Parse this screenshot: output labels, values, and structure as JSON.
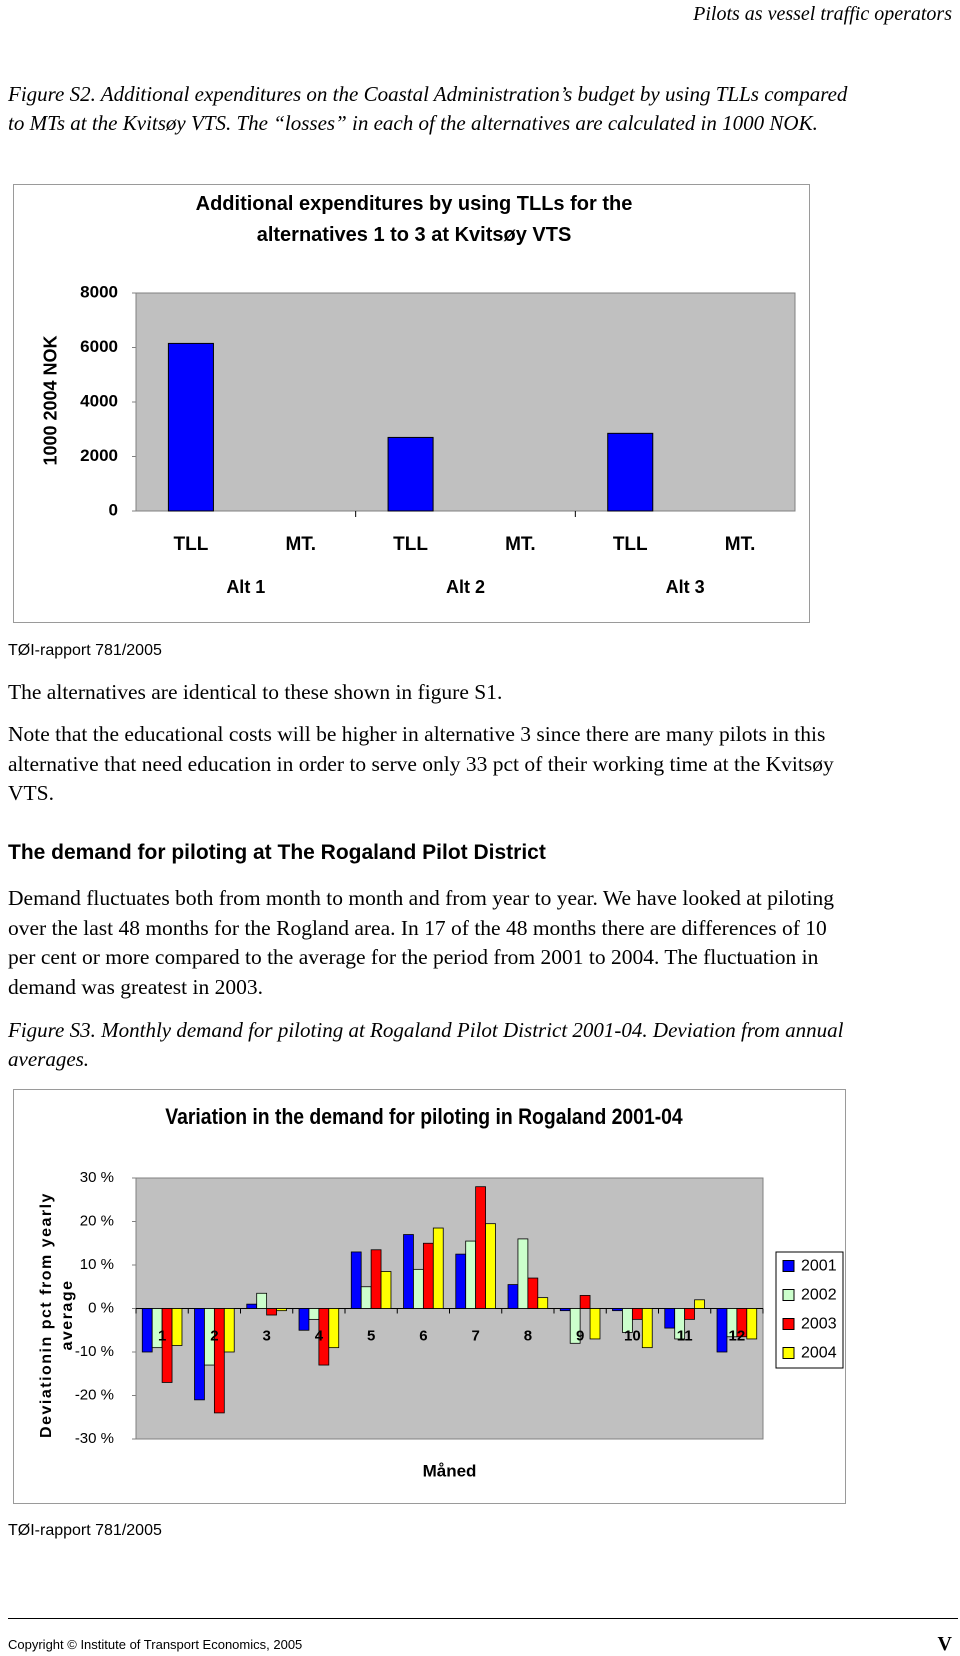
{
  "header": "Pilots as vessel traffic operators",
  "figure_s2_caption": "Figure S2. Additional expenditures on the Coastal Administration’s budget by using TLLs compared to MTs at the Kvitsøy VTS. The “losses” in each of the alternatives are calculated in 1000 NOK.",
  "chart_data": [
    {
      "type": "bar",
      "title": "Additional expenditures by using TLLs for the alternatives 1 to 3 at  Kvitsøy VTS",
      "y_label": "1000 2004 NOK",
      "categories": [
        "TLL",
        "MT.",
        "TLL",
        "MT.",
        "TLL",
        "MT."
      ],
      "group_labels": [
        "Alt 1",
        "Alt 2",
        "Alt 3"
      ],
      "values": [
        6150,
        0,
        2700,
        0,
        2850,
        0
      ],
      "color": "#0000ff",
      "ylim": [
        0,
        8000
      ],
      "yticks": [
        0,
        2000,
        4000,
        6000,
        8000
      ],
      "grid": false
    },
    {
      "type": "grouped-bar",
      "title": "Variation in the demand for piloting in Rogaland 2001-04",
      "x_label": "Måned",
      "y_label": "Deviationin pct from yearly average",
      "categories": [
        "1",
        "2",
        "3",
        "4",
        "5",
        "6",
        "7",
        "8",
        "9",
        "10",
        "11",
        "12"
      ],
      "series": [
        {
          "name": "2001",
          "color": "#0000ff",
          "values": [
            -10,
            -21,
            1,
            -5,
            13,
            17,
            12.5,
            5.5,
            -0.5,
            -0.5,
            -4.5,
            -10
          ]
        },
        {
          "name": "2002",
          "color": "#ccffcc",
          "values": [
            -9,
            -13,
            3.5,
            -2.5,
            5,
            9,
            15.5,
            16,
            -8,
            -5.5,
            -7,
            -6.5
          ]
        },
        {
          "name": "2003",
          "color": "#ff0000",
          "values": [
            -17,
            -24,
            -1.5,
            -13,
            13.5,
            15,
            28,
            7,
            3,
            -2.5,
            -2.5,
            -6.5
          ]
        },
        {
          "name": "2004",
          "color": "#ffff00",
          "values": [
            -8.5,
            -10,
            -0.5,
            -9,
            8.5,
            18.5,
            19.5,
            2.5,
            -7,
            -9,
            2,
            -7
          ]
        }
      ],
      "ylim": [
        -30,
        30
      ],
      "yticks": [
        {
          "value": -30,
          "label": "-30 %"
        },
        {
          "value": -20,
          "label": "-20 %"
        },
        {
          "value": -10,
          "label": "-10 %"
        },
        {
          "value": 0,
          "label": "0 %"
        },
        {
          "value": 10,
          "label": "10 %"
        },
        {
          "value": 20,
          "label": "20 %"
        },
        {
          "value": 30,
          "label": "30 %"
        }
      ],
      "grid": false,
      "legend": "right"
    }
  ],
  "source_1": "TØI-rapport 781/2005",
  "paragraph_1": "The alternatives are identical to these shown in figure S1.",
  "paragraph_2": "Note that the educational costs will be higher in alternative 3 since there are many pilots in this alternative that need education in order to serve only 33 pct of their working time at the Kvitsøy VTS.",
  "heading": "The demand for piloting at The Rogaland Pilot District",
  "paragraph_3": "Demand fluctuates both from month to month and from year to year. We have looked at piloting over the last 48 months for the Rogland area. In 17 of the 48 months there are differences of 10 per cent or more compared to the average for the period from 2001 to 2004. The fluctuation in demand was greatest in 2003.",
  "figure_s3_caption": "Figure S3. Monthly demand for piloting at Rogaland Pilot District 2001-04. Deviation from annual averages.",
  "source_2": "TØI-rapport 781/2005",
  "footer": {
    "copyright": "Copyright © Institute of Transport Economics, 2005",
    "page": "V"
  }
}
